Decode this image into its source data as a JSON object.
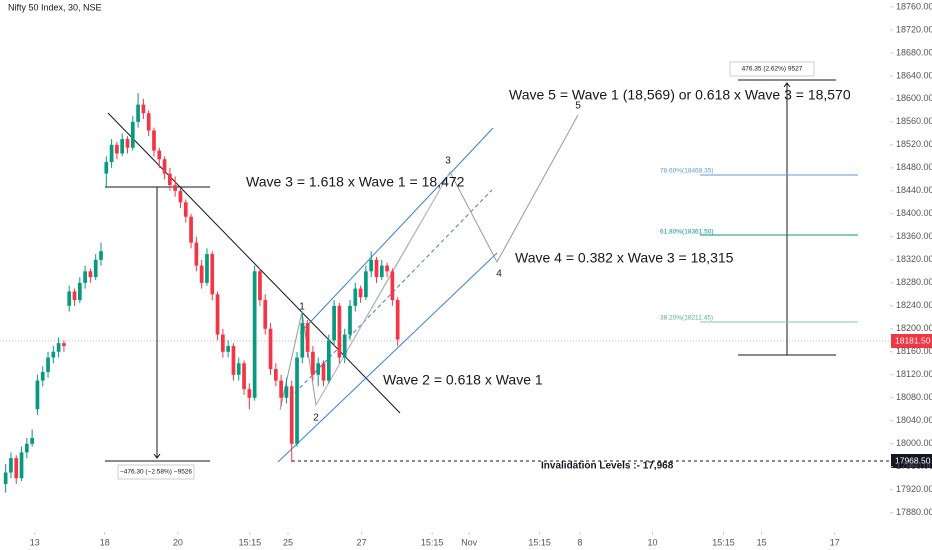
{
  "chart_data": {
    "type": "candlestick",
    "title": "Nifty 50 Index, 30, NSE",
    "up_color": "#089981",
    "down_color": "#f23645",
    "grid": false,
    "xlim": [
      0,
      168
    ],
    "xticks": [
      {
        "value": 6,
        "label": "13"
      },
      {
        "value": 19.2,
        "label": "18"
      },
      {
        "value": 33,
        "label": "20"
      },
      {
        "value": 46.6,
        "label": "15:15"
      },
      {
        "value": 53.8,
        "label": "25"
      },
      {
        "value": 67.7,
        "label": "27"
      },
      {
        "value": 81,
        "label": "15:15"
      },
      {
        "value": 88,
        "label": "Nov"
      },
      {
        "value": 101.3,
        "label": "15:15"
      },
      {
        "value": 108.9,
        "label": "8"
      },
      {
        "value": 122.6,
        "label": "10"
      },
      {
        "value": 136,
        "label": "15:15"
      },
      {
        "value": 143.2,
        "label": "15"
      },
      {
        "value": 157,
        "label": "17"
      }
    ],
    "ylim": [
      17850,
      18772
    ],
    "yticks": [
      {
        "value": 17880,
        "label": "17880.00"
      },
      {
        "value": 17920,
        "label": "17920.00"
      },
      {
        "value": 17960,
        "label": "17960.00"
      },
      {
        "value": 18000,
        "label": "18000.00"
      },
      {
        "value": 18040,
        "label": "18040.00"
      },
      {
        "value": 18080,
        "label": "18080.00"
      },
      {
        "value": 18120,
        "label": "18120.00"
      },
      {
        "value": 18160,
        "label": "18160.00"
      },
      {
        "value": 18200,
        "label": "18200.00"
      },
      {
        "value": 18240,
        "label": "18240.00"
      },
      {
        "value": 18280,
        "label": "18280.00"
      },
      {
        "value": 18320,
        "label": "18320.00"
      },
      {
        "value": 18360,
        "label": "18360.00"
      },
      {
        "value": 18400,
        "label": "18400.00"
      },
      {
        "value": 18440,
        "label": "18440.00"
      },
      {
        "value": 18480,
        "label": "18480.00"
      },
      {
        "value": 18520,
        "label": "18520.00"
      },
      {
        "value": 18560,
        "label": "18560.00"
      },
      {
        "value": 18600,
        "label": "18600.00"
      },
      {
        "value": 18640,
        "label": "18640.00"
      },
      {
        "value": 18680,
        "label": "18680.00"
      },
      {
        "value": 18720,
        "label": "18720.00"
      },
      {
        "value": 18760,
        "label": "18760.00"
      }
    ],
    "open": [
      17930,
      17950,
      17975,
      17940,
      17985,
      18000,
      18060,
      18110,
      18125,
      18150,
      18160,
      18175,
      18240,
      18265,
      18250,
      18280,
      18300,
      18290,
      18320,
      18470,
      18490,
      18520,
      18505,
      18530,
      18515,
      18560,
      18590,
      18575,
      18545,
      18510,
      18495,
      18470,
      18450,
      18440,
      18420,
      18395,
      18350,
      18310,
      18280,
      18330,
      18260,
      18190,
      18160,
      18170,
      18120,
      18140,
      18095,
      18080,
      18300,
      18250,
      18200,
      18130,
      18110,
      18080,
      18100,
      18000,
      18150,
      18210,
      18160,
      18120,
      18140,
      18110,
      18180,
      18240,
      18150,
      18190,
      18240,
      18270,
      18255,
      18300,
      18320,
      18290,
      18310,
      18300,
      18250
    ],
    "high": [
      17965,
      17985,
      17980,
      17995,
      18010,
      18025,
      18120,
      18135,
      18160,
      18170,
      18185,
      18180,
      18275,
      18270,
      18290,
      18310,
      18305,
      18330,
      18350,
      18500,
      18530,
      18525,
      18540,
      18535,
      18570,
      18610,
      18600,
      18580,
      18550,
      18515,
      18500,
      18480,
      18465,
      18445,
      18425,
      18400,
      18360,
      18320,
      18340,
      18335,
      18265,
      18200,
      18180,
      18175,
      18150,
      18145,
      18105,
      18310,
      18305,
      18260,
      18210,
      18140,
      18120,
      18115,
      18110,
      18160,
      18230,
      18215,
      18170,
      18150,
      18145,
      18190,
      18250,
      18245,
      18200,
      18250,
      18280,
      18275,
      18310,
      18335,
      18325,
      18320,
      18315,
      18305,
      18255
    ],
    "low": [
      17915,
      17940,
      17930,
      17935,
      17975,
      17995,
      18050,
      18100,
      18115,
      18140,
      18150,
      18160,
      18230,
      18240,
      18245,
      18270,
      18280,
      18285,
      18310,
      18445,
      18480,
      18495,
      18500,
      18505,
      18510,
      18550,
      18565,
      18535,
      18500,
      18480,
      18460,
      18440,
      18430,
      18410,
      18385,
      18340,
      18300,
      18270,
      18275,
      18250,
      18180,
      18150,
      18150,
      18110,
      18110,
      18085,
      18060,
      18075,
      18240,
      18190,
      18120,
      18100,
      18065,
      18070,
      17968,
      17995,
      18140,
      18150,
      18110,
      18100,
      18100,
      18105,
      18170,
      18140,
      18140,
      18180,
      18230,
      18245,
      18250,
      18290,
      18280,
      18285,
      18290,
      18240,
      18170
    ],
    "close": [
      17950,
      17975,
      17940,
      17985,
      18000,
      18010,
      18110,
      18125,
      18150,
      18160,
      18175,
      18170,
      18265,
      18250,
      18280,
      18300,
      18290,
      18320,
      18335,
      18490,
      18520,
      18505,
      18530,
      18515,
      18560,
      18590,
      18575,
      18545,
      18510,
      18495,
      18470,
      18450,
      18440,
      18420,
      18395,
      18350,
      18310,
      18280,
      18330,
      18260,
      18190,
      18160,
      18170,
      18120,
      18140,
      18095,
      18080,
      18300,
      18250,
      18200,
      18130,
      18110,
      18080,
      18100,
      18000,
      18150,
      18210,
      18160,
      18120,
      18140,
      18110,
      18180,
      18240,
      18150,
      18190,
      18240,
      18270,
      18255,
      18300,
      18320,
      18290,
      18310,
      18300,
      18250,
      18181.5
    ],
    "notes": [
      "Wave 5 = Wave 1 (18,569) or 0.618 x Wave 3 = 18,570",
      "Wave 3 = 1.618 x Wave 1 = 18,472",
      "Wave 4 = 0.382 x Wave 3 = 18,315",
      "Wave 2 = 0.618 x Wave 1",
      "Invalidation Levels :- 17,968"
    ],
    "wave_labels": [
      "1",
      "2",
      "3",
      "4",
      "5"
    ],
    "measure_labels": [
      "−476.30 (−2.58%) −9526",
      "476.35 (2.62%) 9527"
    ],
    "fib_labels": [
      "78.60%(18468.35)",
      "61.80%(18361.50)",
      "38.20%(18211.45)"
    ],
    "price_tags": [
      "18181.50",
      "17968.50"
    ]
  }
}
